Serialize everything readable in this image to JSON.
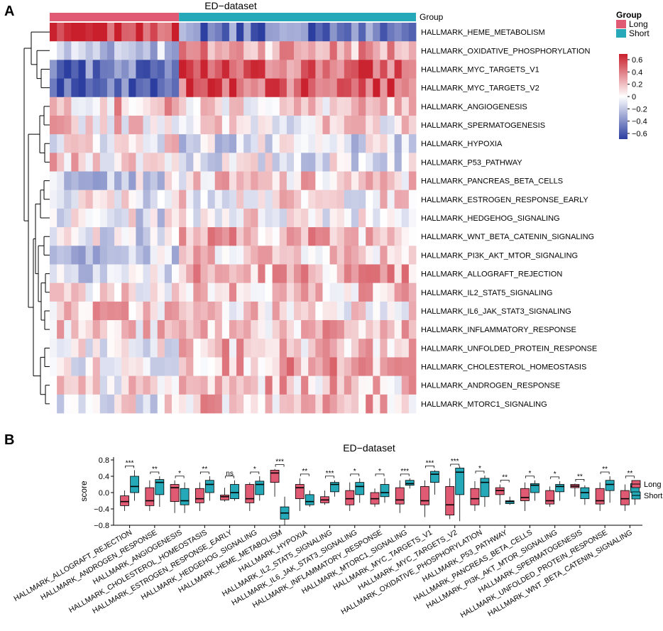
{
  "chart_data": [
    {
      "type": "heatmap",
      "panel_label": "A",
      "title": "ED−dataset",
      "group_label": "Group",
      "legend": {
        "title": "Group",
        "entries": [
          {
            "name": "Long",
            "color": "#e05a73"
          },
          {
            "name": "Short",
            "color": "#25a9b8"
          }
        ],
        "color_scale_ticks": [
          "0.6",
          "0.4",
          "0.2",
          "0",
          "−0.2",
          "−0.4",
          "−0.6"
        ],
        "color_scale_values": [
          0.6,
          0.4,
          0.2,
          0,
          -0.2,
          -0.4,
          -0.6
        ],
        "color_low": "#2c3fa0",
        "color_mid": "#ffffff",
        "color_high": "#c91f2c"
      },
      "samples": {
        "long": 18,
        "short": 33
      },
      "rows": [
        "HALLMARK_HEME_METABOLISM",
        "HALLMARK_OXIDATIVE_PHOSPHORYLATION",
        "HALLMARK_MYC_TARGETS_V1",
        "HALLMARK_MYC_TARGETS_V2",
        "HALLMARK_ANGIOGENESIS",
        "HALLMARK_SPERMATOGENESIS",
        "HALLMARK_HYPOXIA",
        "HALLMARK_P53_PATHWAY",
        "HALLMARK_PANCREAS_BETA_CELLS",
        "HALLMARK_ESTROGEN_RESPONSE_EARLY",
        "HALLMARK_HEDGEHOG_SIGNALING",
        "HALLMARK_WNT_BETA_CATENIN_SIGNALING",
        "HALLMARK_PI3K_AKT_MTOR_SIGNALING",
        "HALLMARK_ALLOGRAFT_REJECTION",
        "HALLMARK_IL2_STAT5_SIGNALING",
        "HALLMARK_IL6_JAK_STAT3_SIGNALING",
        "HALLMARK_INFLAMMATORY_RESPONSE",
        "HALLMARK_UNFOLDED_PROTEIN_RESPONSE",
        "HALLMARK_CHOLESTEROL_HOMEOSTASIS",
        "HALLMARK_ANDROGEN_RESPONSE",
        "HALLMARK_MTORC1_SIGNALING"
      ],
      "row_mean_long": [
        0.55,
        -0.15,
        -0.45,
        -0.5,
        0.15,
        0.1,
        0.05,
        0.1,
        -0.1,
        0.0,
        -0.05,
        -0.05,
        -0.15,
        -0.05,
        0.05,
        0.15,
        0.1,
        -0.05,
        0.0,
        0.05,
        0.0
      ],
      "row_mean_short": [
        -0.4,
        0.25,
        0.4,
        0.45,
        0.1,
        0.05,
        -0.1,
        -0.05,
        0.1,
        0.05,
        0.05,
        0.2,
        0.15,
        0.2,
        0.15,
        0.1,
        0.15,
        0.15,
        0.2,
        0.15,
        0.15
      ]
    },
    {
      "type": "boxplot",
      "panel_label": "B",
      "title": "ED−dataset",
      "ylabel": "score",
      "ylim": [
        -0.8,
        0.8
      ],
      "yticks": [
        "0.8",
        "0.4",
        "0.0",
        "−0.4",
        "−0.8"
      ],
      "ytick_values": [
        0.8,
        0.4,
        0.0,
        -0.4,
        -0.8
      ],
      "legend": [
        {
          "name": "Long",
          "color": "#e05a73"
        },
        {
          "name": "Short",
          "color": "#25a9b8"
        }
      ],
      "categories": [
        "HALLMARK_ALLOGRAFT_REJECTION",
        "HALLMARK_ANDROGEN_RESPONSE",
        "HALLMARK_ANGIOGENESIS",
        "HALLMARK_CHOLESTEROL_HOMEOSTASIS",
        "HALLMARK_ESTROGEN_RESPONSE_EARLY",
        "HALLMARK_HEDGEHOG_SIGNALING",
        "HALLMARK_HEME_METABOLISM",
        "HALLMARK_HYPOXIA",
        "HALLMARK_IL2_STAT5_SIGNALING",
        "HALLMARK_IL6_JAK_STAT3_SIGNALING",
        "HALLMARK_INFLAMMATORY_RESPONSE",
        "HALLMARK_MTORC1_SIGNALING",
        "HALLMARK_MYC_TARGETS_V1",
        "HALLMARK_MYC_TARGETS_V2",
        "HALLMARK_OXIDATIVE_PHOSPHORYLATION",
        "HALLMARK_P53_PATHWAY",
        "HALLMARK_PANCREAS_BETA_CELLS",
        "HALLMARK_PI3K_AKT_MTOR_SIGNALING",
        "HALLMARK_SPERMATOGENESIS",
        "HALLMARK_UNFOLDED_PROTEIN_RESPONSE",
        "HALLMARK_WNT_BETA_CATENIN_SIGNALING"
      ],
      "significance": [
        "***",
        "**",
        "*",
        "**",
        "ns",
        "*",
        "***",
        "**",
        "***",
        "*",
        "*",
        "***",
        "***",
        "***",
        "*",
        "**",
        "*",
        "*",
        "**",
        "**",
        "**"
      ],
      "series": [
        {
          "name": "Long",
          "boxes": [
            {
              "min": -0.45,
              "q1": -0.32,
              "median": -0.22,
              "q3": -0.08,
              "max": 0.05
            },
            {
              "min": -0.45,
              "q1": -0.32,
              "median": -0.2,
              "q3": 0.12,
              "max": 0.3
            },
            {
              "min": -0.5,
              "q1": -0.22,
              "median": 0.12,
              "q3": 0.2,
              "max": 0.3
            },
            {
              "min": -0.45,
              "q1": -0.25,
              "median": -0.15,
              "q3": 0.1,
              "max": 0.25
            },
            {
              "min": -0.22,
              "q1": -0.18,
              "median": -0.1,
              "q3": -0.06,
              "max": 0.12
            },
            {
              "min": -0.45,
              "q1": -0.25,
              "median": -0.15,
              "q3": 0.2,
              "max": 0.25
            },
            {
              "min": -0.1,
              "q1": 0.25,
              "median": 0.48,
              "q3": 0.55,
              "max": 0.58
            },
            {
              "min": -0.45,
              "q1": -0.15,
              "median": 0.12,
              "q3": 0.2,
              "max": 0.35
            },
            {
              "min": -0.3,
              "q1": -0.25,
              "median": -0.18,
              "q3": -0.1,
              "max": 0.05
            },
            {
              "min": -0.45,
              "q1": -0.3,
              "median": -0.15,
              "q3": 0.05,
              "max": 0.25
            },
            {
              "min": -0.35,
              "q1": -0.28,
              "median": -0.15,
              "q3": 0.0,
              "max": 0.1
            },
            {
              "min": -0.5,
              "q1": -0.28,
              "median": -0.18,
              "q3": 0.12,
              "max": 0.3
            },
            {
              "min": -0.6,
              "q1": -0.3,
              "median": -0.2,
              "q3": 0.15,
              "max": 0.3
            },
            {
              "min": -0.65,
              "q1": -0.55,
              "median": -0.3,
              "q3": 0.15,
              "max": 0.35
            },
            {
              "min": -0.45,
              "q1": -0.3,
              "median": -0.15,
              "q3": 0.1,
              "max": 0.28
            },
            {
              "min": -0.3,
              "q1": -0.05,
              "median": 0.05,
              "q3": 0.12,
              "max": 0.2
            },
            {
              "min": -0.45,
              "q1": -0.2,
              "median": -0.12,
              "q3": 0.1,
              "max": 0.25
            },
            {
              "min": -0.35,
              "q1": -0.28,
              "median": -0.2,
              "q3": 0.05,
              "max": 0.15
            },
            {
              "min": -0.1,
              "q1": 0.12,
              "median": 0.16,
              "q3": 0.2,
              "max": 0.22
            },
            {
              "min": -0.45,
              "q1": -0.28,
              "median": -0.2,
              "q3": 0.1,
              "max": 0.25
            },
            {
              "min": -0.45,
              "q1": -0.3,
              "median": -0.15,
              "q3": 0.05,
              "max": 0.2
            }
          ]
        },
        {
          "name": "Short",
          "boxes": [
            {
              "min": -0.2,
              "q1": 0.0,
              "median": 0.15,
              "q3": 0.4,
              "max": 0.55
            },
            {
              "min": -0.35,
              "q1": -0.05,
              "median": 0.25,
              "q3": 0.32,
              "max": 0.4
            },
            {
              "min": -0.5,
              "q1": -0.3,
              "median": -0.2,
              "q3": 0.1,
              "max": 0.25
            },
            {
              "min": -0.2,
              "q1": 0.0,
              "median": 0.2,
              "q3": 0.3,
              "max": 0.4
            },
            {
              "min": -0.2,
              "q1": -0.15,
              "median": 0.0,
              "q3": 0.2,
              "max": 0.3
            },
            {
              "min": -0.2,
              "q1": -0.05,
              "median": 0.2,
              "q3": 0.28,
              "max": 0.4
            },
            {
              "min": -0.8,
              "q1": -0.65,
              "median": -0.5,
              "q3": -0.35,
              "max": -0.1
            },
            {
              "min": -0.35,
              "q1": -0.3,
              "median": -0.22,
              "q3": -0.05,
              "max": 0.05
            },
            {
              "min": -0.1,
              "q1": 0.02,
              "median": 0.2,
              "q3": 0.25,
              "max": 0.3
            },
            {
              "min": -0.25,
              "q1": -0.05,
              "median": 0.15,
              "q3": 0.25,
              "max": 0.35
            },
            {
              "min": -0.25,
              "q1": -0.1,
              "median": 0.0,
              "q3": 0.2,
              "max": 0.35
            },
            {
              "min": 0.1,
              "q1": 0.18,
              "median": 0.22,
              "q3": 0.3,
              "max": 0.35
            },
            {
              "min": -0.05,
              "q1": 0.25,
              "median": 0.45,
              "q3": 0.52,
              "max": 0.55
            },
            {
              "min": -0.7,
              "q1": -0.05,
              "median": 0.5,
              "q3": 0.6,
              "max": 0.65
            },
            {
              "min": -0.35,
              "q1": -0.1,
              "median": 0.25,
              "q3": 0.35,
              "max": 0.42
            },
            {
              "min": -0.3,
              "q1": -0.27,
              "median": -0.22,
              "q3": -0.2,
              "max": -0.1
            },
            {
              "min": -0.2,
              "q1": 0.0,
              "median": 0.18,
              "q3": 0.22,
              "max": 0.3
            },
            {
              "min": -0.2,
              "q1": 0.02,
              "median": 0.15,
              "q3": 0.2,
              "max": 0.28
            },
            {
              "min": -0.3,
              "q1": -0.15,
              "median": 0.0,
              "q3": 0.12,
              "max": 0.18
            },
            {
              "min": -0.25,
              "q1": 0.05,
              "median": 0.2,
              "q3": 0.3,
              "max": 0.4
            },
            {
              "min": -0.3,
              "q1": 0.0,
              "median": 0.15,
              "q3": 0.22,
              "max": 0.3
            }
          ]
        }
      ]
    }
  ]
}
